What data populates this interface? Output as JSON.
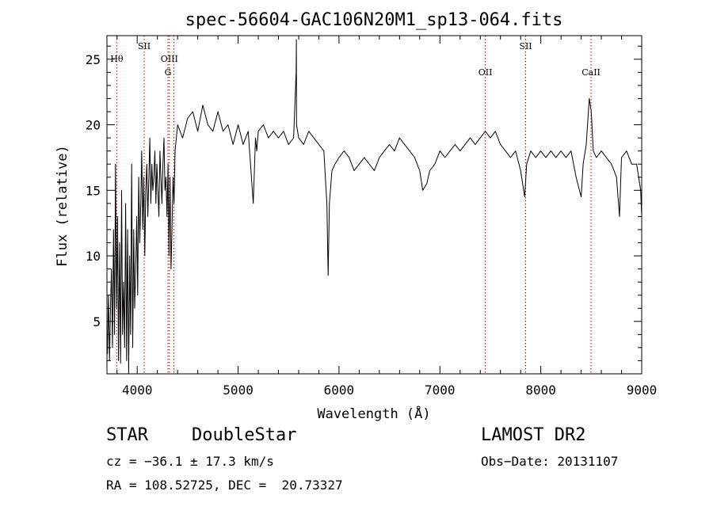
{
  "chart_data": {
    "type": "line",
    "title": "spec-56604-GAC106N20M1_sp13-064.fits",
    "xlabel": "Wavelength (Å)",
    "ylabel": "Flux (relative)",
    "xlim": [
      3700,
      9000
    ],
    "ylim": [
      1,
      26.8
    ],
    "xticks": [
      4000,
      5000,
      6000,
      7000,
      8000,
      9000
    ],
    "yticks": [
      5,
      10,
      15,
      20,
      25
    ],
    "line_color": "#000000",
    "marker_color": "#cc0000",
    "series": [
      {
        "x": [
          3705,
          3715,
          3725,
          3735,
          3745,
          3755,
          3765,
          3775,
          3785,
          3795,
          3805,
          3815,
          3825,
          3835,
          3845,
          3855,
          3865,
          3875,
          3885,
          3895,
          3905,
          3915,
          3925,
          3935,
          3945,
          3955,
          3965,
          3975,
          3985,
          3995,
          4005,
          4015,
          4025,
          4035,
          4045,
          4055,
          4065,
          4075,
          4085,
          4095,
          4105,
          4115,
          4125,
          4135,
          4145,
          4155,
          4165,
          4175,
          4185,
          4195,
          4205,
          4215,
          4225,
          4235,
          4245,
          4255,
          4265,
          4275,
          4285,
          4295,
          4305,
          4315,
          4325,
          4335,
          4345,
          4355,
          4365,
          4375,
          4400,
          4450,
          4500,
          4550,
          4600,
          4650,
          4700,
          4750,
          4800,
          4850,
          4900,
          4950,
          5000,
          5050,
          5100,
          5150,
          5172,
          5185,
          5200,
          5250,
          5300,
          5350,
          5400,
          5450,
          5500,
          5550,
          5575,
          5577,
          5579,
          5600,
          5650,
          5700,
          5750,
          5800,
          5850,
          5880,
          5892,
          5905,
          5930,
          5960,
          6000,
          6050,
          6100,
          6150,
          6200,
          6250,
          6300,
          6350,
          6400,
          6450,
          6500,
          6550,
          6600,
          6650,
          6700,
          6750,
          6800,
          6830,
          6870,
          6900,
          6950,
          7000,
          7050,
          7100,
          7150,
          7200,
          7250,
          7300,
          7350,
          7400,
          7450,
          7500,
          7550,
          7600,
          7650,
          7700,
          7750,
          7800,
          7840,
          7860,
          7900,
          7950,
          8000,
          8050,
          8100,
          8150,
          8200,
          8250,
          8300,
          8350,
          8400,
          8420,
          8450,
          8480,
          8500,
          8520,
          8550,
          8600,
          8650,
          8700,
          8750,
          8780,
          8800,
          8850,
          8900,
          8950,
          8970,
          8990,
          9000
        ],
        "y": [
          2.5,
          7,
          2,
          6,
          9,
          3,
          12,
          4,
          17,
          6,
          13,
          2,
          11,
          1.8,
          15,
          4,
          8,
          3,
          14,
          2,
          12,
          1,
          10,
          4,
          17,
          3,
          12,
          6,
          9,
          13,
          7,
          16,
          11,
          14,
          18,
          12,
          16,
          10,
          15,
          17,
          13,
          16,
          19,
          14,
          17,
          15,
          16,
          18,
          14,
          17,
          15,
          13,
          18,
          16,
          14,
          17,
          19,
          15,
          16,
          13,
          17,
          10,
          16,
          9,
          12,
          16,
          14,
          18,
          20,
          19,
          20.5,
          21,
          19.5,
          21.5,
          20,
          19.5,
          21,
          19.5,
          20,
          18.5,
          20,
          18.5,
          19.5,
          14,
          19,
          18,
          19.5,
          20,
          19,
          19.5,
          19,
          19.5,
          18.5,
          19,
          24,
          26.5,
          20,
          19,
          18.5,
          19.5,
          19,
          18.5,
          18,
          14,
          8.5,
          14,
          16.5,
          17,
          17.5,
          18,
          17.5,
          16.5,
          17,
          17.5,
          17,
          16.5,
          17.5,
          18,
          18.5,
          18,
          19,
          18.5,
          18,
          17.5,
          16.5,
          15,
          15.5,
          16.5,
          17,
          18,
          17.5,
          18,
          18.5,
          18,
          18.5,
          19,
          18.5,
          19,
          19.5,
          19,
          19.5,
          18.5,
          18,
          17.5,
          18,
          16.5,
          14.5,
          17,
          18,
          17.5,
          18,
          17.5,
          18,
          17.5,
          18,
          17.5,
          18,
          16,
          14.5,
          17,
          18.5,
          22,
          21,
          18,
          17.5,
          18,
          17.5,
          17,
          16,
          13,
          17.5,
          18,
          17,
          17,
          16,
          15,
          13
        ]
      }
    ],
    "line_markers": [
      {
        "label": "Hθ",
        "x": 3797,
        "row": 2
      },
      {
        "label": "SII",
        "x": 4069,
        "row": 1
      },
      {
        "label": "OIII",
        "x": 4319,
        "row": 2
      },
      {
        "label": "G",
        "x": 4305,
        "row": 3
      },
      {
        "label": "",
        "x": 4363,
        "row": 0
      },
      {
        "label": "OII",
        "x": 7450,
        "row": 3
      },
      {
        "label": "SII",
        "x": 7850,
        "row": 1
      },
      {
        "label": "CaII",
        "x": 8498,
        "row": 3
      }
    ]
  },
  "info": {
    "class": "STAR",
    "subclass": "DoubleStar",
    "survey": "LAMOST DR2",
    "cz": "cz = −36.1 ± 17.3 km/s",
    "obs_date": "Obs−Date: 20131107",
    "coords": "RA = 108.52725, DEC =  20.73327"
  }
}
